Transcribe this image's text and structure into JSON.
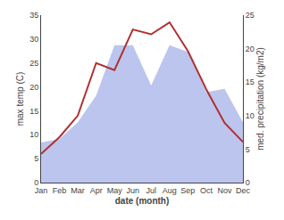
{
  "chart_data": {
    "type": "line",
    "categories": [
      "Jan",
      "Feb",
      "Mar",
      "Apr",
      "May",
      "Jun",
      "Jul",
      "Aug",
      "Sep",
      "Oct",
      "Nov",
      "Dec"
    ],
    "xlabel": "date (month)",
    "ylabel": "max temp (C)",
    "y2label": "med. precipitation (kg/m2)",
    "series": [
      {
        "type": "line",
        "color": "#b03030",
        "values": [
          6.0,
          9.5,
          14.0,
          25.0,
          23.5,
          32.0,
          31.0,
          33.5,
          27.5,
          19.5,
          12.5,
          8.5
        ]
      },
      {
        "type": "area",
        "color": "#bcc5ee",
        "axis": "y2",
        "values": [
          6.0,
          6.5,
          9.0,
          13.0,
          20.5,
          20.5,
          14.5,
          20.5,
          19.5,
          13.5,
          14.0,
          9.0
        ]
      }
    ],
    "ylim": [
      0,
      35
    ],
    "yticks": [
      0,
      5,
      10,
      15,
      20,
      25,
      30,
      35
    ],
    "y2lim": [
      0,
      25
    ],
    "y2ticks": [
      0,
      5,
      10,
      15,
      20,
      25
    ],
    "grid": false
  }
}
